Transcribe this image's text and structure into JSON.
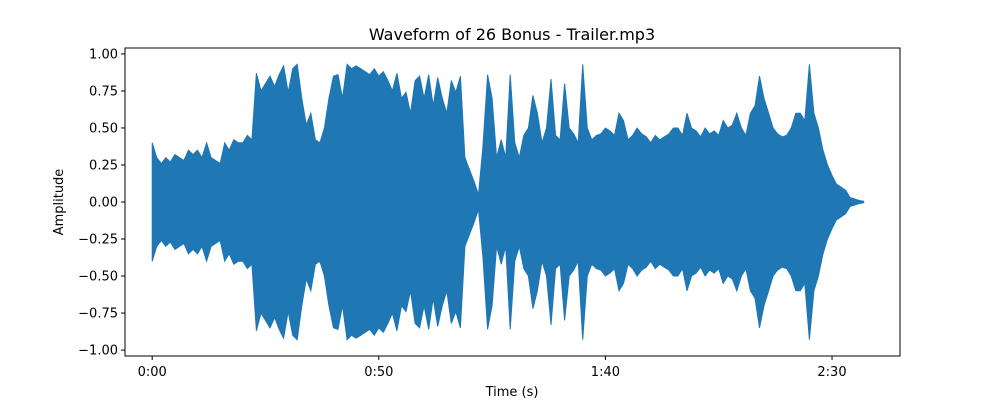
{
  "chart_data": {
    "type": "line",
    "title": "Waveform of 26 Bonus - Trailer.mp3",
    "xlabel": "Time (s)",
    "ylabel": "Amplitude",
    "xlim": [
      -6.0,
      165.0
    ],
    "ylim": [
      -1.04,
      1.04
    ],
    "x_ticks": [
      {
        "value": 0,
        "label": "0:00"
      },
      {
        "value": 50,
        "label": "0:50"
      },
      {
        "value": 100,
        "label": "1:40"
      },
      {
        "value": 150,
        "label": "2:30"
      }
    ],
    "y_ticks": [
      {
        "value": 1.0,
        "label": "1.00"
      },
      {
        "value": 0.75,
        "label": "0.75"
      },
      {
        "value": 0.5,
        "label": "0.50"
      },
      {
        "value": 0.25,
        "label": "0.25"
      },
      {
        "value": 0.0,
        "label": "0.00"
      },
      {
        "value": -0.25,
        "label": "−0.25"
      },
      {
        "value": -0.5,
        "label": "−0.50"
      },
      {
        "value": -0.75,
        "label": "−0.75"
      },
      {
        "value": -1.0,
        "label": "−1.00"
      }
    ],
    "grid": false,
    "legend": "none",
    "color": "#1f77b4",
    "series": [
      {
        "x": [
          0,
          1,
          2,
          3,
          4,
          5,
          6,
          7,
          8,
          9,
          10,
          11,
          12,
          13,
          14,
          15,
          16,
          17,
          18,
          19,
          20,
          21,
          22,
          23,
          24,
          25,
          26,
          27,
          28,
          29,
          30,
          31,
          32,
          33,
          34,
          35,
          36,
          37,
          38,
          39,
          40,
          41,
          42,
          43,
          44,
          45,
          46,
          47,
          48,
          49,
          50,
          51,
          52,
          53,
          54,
          55,
          56,
          57,
          58,
          59,
          60,
          61,
          62,
          63,
          64,
          65,
          66,
          67,
          68,
          69,
          70,
          71,
          72,
          73,
          74,
          75,
          76,
          77,
          78,
          79,
          80,
          81,
          82,
          83,
          84,
          85,
          86,
          87,
          88,
          89,
          90,
          91,
          92,
          93,
          94,
          95,
          96,
          97,
          98,
          99,
          100,
          101,
          102,
          103,
          104,
          105,
          106,
          107,
          108,
          109,
          110,
          111,
          112,
          113,
          114,
          115,
          116,
          117,
          118,
          119,
          120,
          121,
          122,
          123,
          124,
          125,
          126,
          127,
          128,
          129,
          130,
          131,
          132,
          133,
          134,
          135,
          136,
          137,
          138,
          139,
          140,
          141,
          142,
          143,
          144,
          145,
          146,
          147,
          148,
          149,
          150,
          151,
          152,
          153,
          154,
          155,
          156,
          157
        ],
        "max": [
          0.4,
          0.3,
          0.26,
          0.3,
          0.27,
          0.32,
          0.3,
          0.28,
          0.35,
          0.32,
          0.35,
          0.3,
          0.4,
          0.3,
          0.28,
          0.26,
          0.4,
          0.35,
          0.42,
          0.4,
          0.4,
          0.45,
          0.42,
          0.87,
          0.75,
          0.8,
          0.85,
          0.78,
          0.86,
          0.92,
          0.74,
          0.9,
          0.93,
          0.7,
          0.52,
          0.6,
          0.42,
          0.4,
          0.5,
          0.7,
          0.85,
          0.86,
          0.7,
          0.93,
          0.9,
          0.92,
          0.9,
          0.88,
          0.86,
          0.9,
          0.85,
          0.88,
          0.82,
          0.75,
          0.87,
          0.7,
          0.74,
          0.6,
          0.82,
          0.85,
          0.7,
          0.86,
          0.65,
          0.84,
          0.7,
          0.6,
          0.82,
          0.74,
          0.85,
          0.3,
          0.22,
          0.14,
          0.05,
          0.38,
          0.86,
          0.7,
          0.3,
          0.42,
          0.3,
          0.86,
          0.4,
          0.3,
          0.45,
          0.5,
          0.72,
          0.6,
          0.4,
          0.5,
          0.83,
          0.45,
          0.42,
          0.8,
          0.5,
          0.46,
          0.4,
          0.93,
          0.5,
          0.42,
          0.45,
          0.46,
          0.5,
          0.48,
          0.45,
          0.6,
          0.55,
          0.42,
          0.45,
          0.5,
          0.46,
          0.44,
          0.4,
          0.45,
          0.42,
          0.44,
          0.46,
          0.5,
          0.5,
          0.45,
          0.6,
          0.5,
          0.48,
          0.44,
          0.5,
          0.46,
          0.48,
          0.45,
          0.55,
          0.5,
          0.52,
          0.6,
          0.5,
          0.45,
          0.6,
          0.65,
          0.85,
          0.7,
          0.6,
          0.5,
          0.46,
          0.44,
          0.45,
          0.5,
          0.6,
          0.6,
          0.55,
          0.93,
          0.6,
          0.5,
          0.35,
          0.25,
          0.18,
          0.12,
          0.1,
          0.08,
          0.03,
          0.02,
          0.01,
          0.005
        ],
        "min": [
          -0.4,
          -0.3,
          -0.26,
          -0.3,
          -0.27,
          -0.32,
          -0.3,
          -0.28,
          -0.35,
          -0.32,
          -0.35,
          -0.3,
          -0.4,
          -0.3,
          -0.28,
          -0.26,
          -0.4,
          -0.35,
          -0.42,
          -0.4,
          -0.4,
          -0.45,
          -0.42,
          -0.87,
          -0.75,
          -0.8,
          -0.85,
          -0.78,
          -0.86,
          -0.92,
          -0.74,
          -0.9,
          -0.93,
          -0.7,
          -0.52,
          -0.6,
          -0.42,
          -0.4,
          -0.5,
          -0.7,
          -0.85,
          -0.86,
          -0.7,
          -0.93,
          -0.9,
          -0.92,
          -0.9,
          -0.88,
          -0.86,
          -0.9,
          -0.85,
          -0.88,
          -0.82,
          -0.75,
          -0.87,
          -0.7,
          -0.74,
          -0.6,
          -0.82,
          -0.85,
          -0.7,
          -0.86,
          -0.65,
          -0.84,
          -0.7,
          -0.6,
          -0.82,
          -0.74,
          -0.85,
          -0.3,
          -0.22,
          -0.14,
          -0.05,
          -0.38,
          -0.86,
          -0.7,
          -0.3,
          -0.42,
          -0.3,
          -0.86,
          -0.4,
          -0.3,
          -0.45,
          -0.5,
          -0.72,
          -0.6,
          -0.4,
          -0.5,
          -0.83,
          -0.45,
          -0.42,
          -0.8,
          -0.5,
          -0.46,
          -0.4,
          -0.93,
          -0.5,
          -0.42,
          -0.45,
          -0.46,
          -0.5,
          -0.48,
          -0.45,
          -0.6,
          -0.55,
          -0.42,
          -0.45,
          -0.5,
          -0.46,
          -0.44,
          -0.4,
          -0.45,
          -0.42,
          -0.44,
          -0.46,
          -0.5,
          -0.5,
          -0.45,
          -0.6,
          -0.5,
          -0.48,
          -0.44,
          -0.5,
          -0.46,
          -0.48,
          -0.45,
          -0.55,
          -0.5,
          -0.52,
          -0.6,
          -0.5,
          -0.45,
          -0.6,
          -0.65,
          -0.85,
          -0.7,
          -0.6,
          -0.5,
          -0.46,
          -0.44,
          -0.45,
          -0.5,
          -0.6,
          -0.6,
          -0.55,
          -0.93,
          -0.6,
          -0.5,
          -0.35,
          -0.25,
          -0.18,
          -0.12,
          -0.1,
          -0.08,
          -0.03,
          -0.02,
          -0.01,
          -0.005
        ]
      }
    ]
  }
}
